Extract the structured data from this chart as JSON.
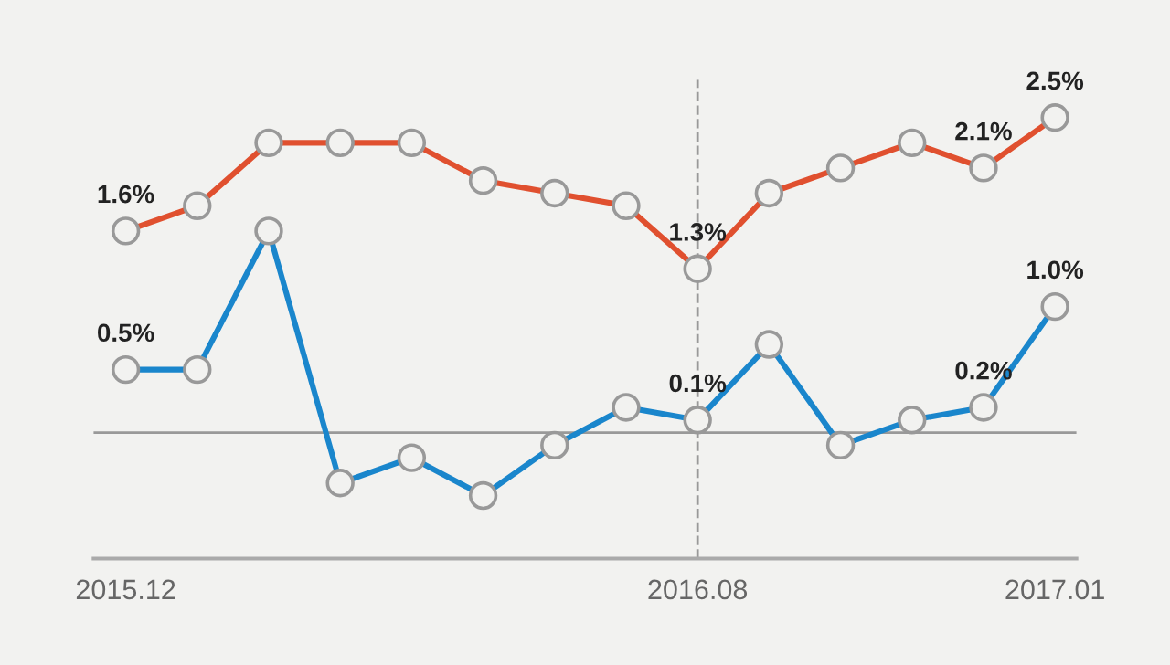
{
  "chart_data": {
    "type": "line",
    "categories": [
      "2015.12",
      null,
      null,
      null,
      null,
      null,
      null,
      null,
      "2016.08",
      null,
      null,
      null,
      null,
      "2017.01"
    ],
    "series": [
      {
        "color": "#e0502f",
        "values": [
          1.6,
          1.8,
          2.3,
          2.3,
          2.3,
          2.0,
          1.9,
          1.8,
          1.3,
          1.9,
          2.1,
          2.3,
          2.1,
          2.5
        ],
        "value_labels": [
          "1.6%",
          null,
          null,
          null,
          null,
          null,
          null,
          null,
          "1.3%",
          null,
          null,
          null,
          "2.1%",
          "2.5%"
        ]
      },
      {
        "color": "#1a86cc",
        "values": [
          0.5,
          0.5,
          1.6,
          -0.4,
          -0.2,
          -0.5,
          -0.1,
          0.2,
          0.1,
          0.7,
          -0.1,
          0.1,
          0.2,
          1.0
        ],
        "value_labels": [
          "0.5%",
          null,
          null,
          null,
          null,
          null,
          null,
          null,
          "0.1%",
          null,
          null,
          null,
          "0.2%",
          "1.0%"
        ]
      }
    ],
    "ylim": [
      -1.0,
      2.8
    ],
    "tick_labels": "x",
    "marker": "circle",
    "line_style": "solid",
    "grid": false,
    "legend": false,
    "ref_lines": [
      {
        "axis": "y",
        "value": 0,
        "color": "#999999",
        "line_style": "solid"
      },
      {
        "axis": "x",
        "value": "2016.08",
        "color": "#999999",
        "line_style": "dashed"
      }
    ]
  }
}
